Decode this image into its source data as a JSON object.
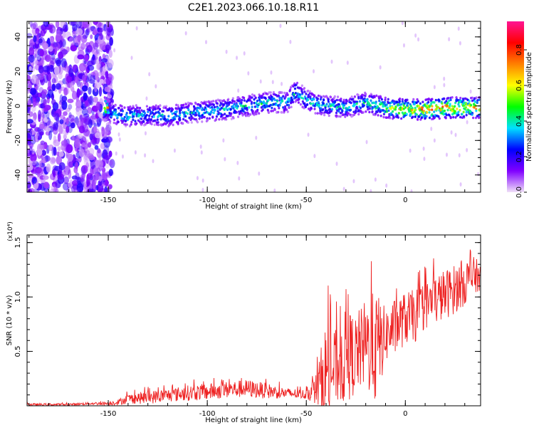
{
  "title": "C2E1.2023.066.10.18.R11",
  "colors": {
    "snr_line": "#ee2222",
    "axis": "#000000",
    "background": "#ffffff"
  },
  "chart_data": [
    {
      "type": "heatmap",
      "xlabel": "Height of straight line (km)",
      "ylabel": "Frequency (Hz)",
      "xlim": [
        -191,
        38
      ],
      "ylim": [
        -50,
        49
      ],
      "xticks": [
        -150,
        -100,
        -50,
        0
      ],
      "yticks": [
        -40,
        -20,
        0,
        20,
        40
      ],
      "colorbar": {
        "label": "Normalized spectral amplitude",
        "range": [
          0,
          0.96
        ],
        "ticks": [
          0.0,
          0.2,
          0.4,
          0.6,
          0.8
        ],
        "colormap": [
          "#f0e0f8",
          "#8000ff",
          "#0000ff",
          "#00e0ff",
          "#00ff00",
          "#ffff00",
          "#ff8000",
          "#ff0000",
          "#ff1493"
        ]
      },
      "ridge": {
        "x": [
          -150,
          -140,
          -130,
          -120,
          -110,
          -100,
          -90,
          -80,
          -70,
          -60,
          -55,
          -50,
          -40,
          -30,
          -20,
          -10,
          0,
          10,
          20,
          30,
          38
        ],
        "freq": [
          -4,
          -6,
          -5,
          -6,
          -4,
          -3,
          -2,
          0,
          2,
          2,
          9,
          3,
          0,
          -1,
          2,
          -1,
          -2,
          -2,
          -1,
          -1,
          -1
        ],
        "amp": [
          0.35,
          0.4,
          0.35,
          0.4,
          0.38,
          0.4,
          0.38,
          0.4,
          0.42,
          0.4,
          0.45,
          0.42,
          0.38,
          0.4,
          0.4,
          0.55,
          0.7,
          0.75,
          0.75,
          0.72,
          0.7
        ]
      }
    },
    {
      "type": "line",
      "xlabel": "Height of straight line (km)",
      "ylabel": "SNR (10 * v/v)",
      "yscale_label": "(x10⁴)",
      "xlim": [
        -191,
        38
      ],
      "ylim": [
        0,
        1.57
      ],
      "xticks": [
        -150,
        -100,
        -50,
        0
      ],
      "yticks": [
        0.5,
        1.0,
        1.5
      ],
      "series": [
        {
          "x": [
            -191,
            -180,
            -170,
            -160,
            -150,
            -145,
            -140,
            -130,
            -120,
            -110,
            -100,
            -90,
            -80,
            -70,
            -60,
            -50,
            -45,
            -40,
            -35,
            -30,
            -25,
            -20,
            -15,
            -10,
            -5,
            0,
            5,
            10,
            15,
            20,
            25,
            30,
            35,
            38
          ],
          "y": [
            0.01,
            0.01,
            0.01,
            0.02,
            0.02,
            0.03,
            0.06,
            0.07,
            0.09,
            0.11,
            0.12,
            0.14,
            0.15,
            0.13,
            0.11,
            0.1,
            0.14,
            0.25,
            0.32,
            0.4,
            0.44,
            0.52,
            0.48,
            0.62,
            0.7,
            0.78,
            0.8,
            0.9,
            0.95,
            1.0,
            1.05,
            1.12,
            1.17,
            1.18
          ],
          "y_max": [
            0.03,
            0.03,
            0.03,
            0.04,
            0.05,
            0.08,
            0.14,
            0.18,
            0.2,
            0.24,
            0.26,
            0.28,
            0.3,
            0.26,
            0.2,
            0.18,
            0.4,
            1.15,
            0.95,
            1.2,
            1.1,
            1.28,
            1.45,
            1.08,
            1.18,
            1.22,
            1.25,
            1.3,
            1.38,
            1.42,
            1.46,
            1.52,
            1.5,
            1.4
          ]
        }
      ]
    }
  ]
}
